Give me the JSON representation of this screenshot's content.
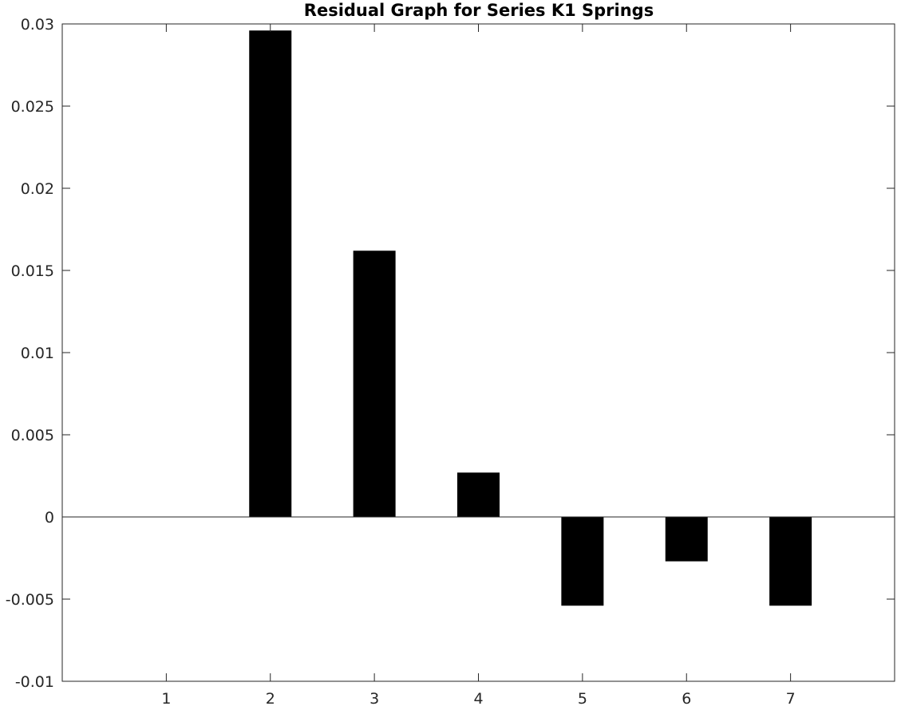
{
  "chart_data": {
    "type": "bar",
    "title": "Residual Graph for Series K1 Springs",
    "xlabel": "",
    "ylabel": "",
    "categories": [
      "1",
      "2",
      "3",
      "4",
      "5",
      "6",
      "7"
    ],
    "values": [
      0,
      0.0296,
      0.0162,
      0.0027,
      -0.0054,
      -0.0027,
      -0.0054
    ],
    "ylim": [
      -0.01,
      0.03
    ],
    "xlim": [
      0,
      8
    ],
    "yticks": [
      "-0.01",
      "-0.005",
      "0",
      "0.005",
      "0.01",
      "0.015",
      "0.02",
      "0.025",
      "0.03"
    ],
    "ytick_values": [
      -0.01,
      -0.005,
      0,
      0.005,
      0.01,
      0.015,
      0.02,
      0.025,
      0.03
    ],
    "grid": false,
    "legend": "none",
    "bar_color": "#000000",
    "axis_color": "#262626"
  }
}
